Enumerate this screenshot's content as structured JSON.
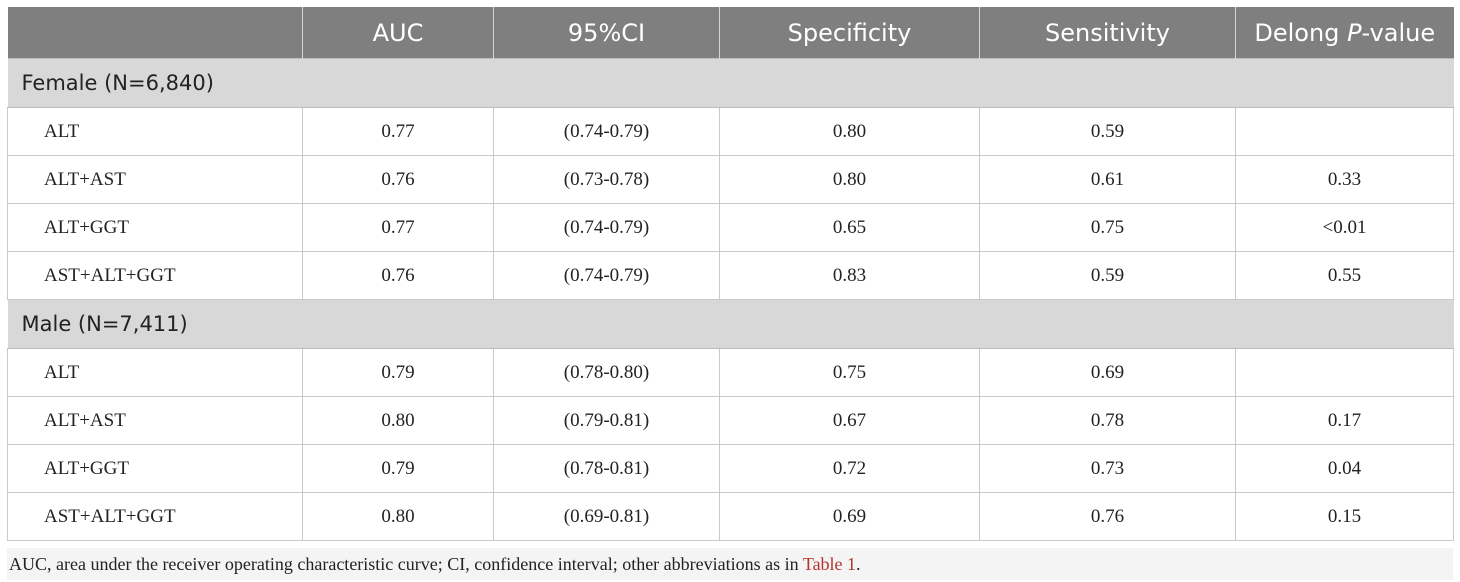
{
  "table": {
    "headers": [
      "",
      "AUC",
      "95%CI",
      "Specificity",
      "Sensitivity",
      "Delong"
    ],
    "pvalue_italic": "P",
    "pvalue_suffix": "-value",
    "groups": [
      {
        "label": "Female (N=6,840)",
        "rows": [
          [
            "ALT",
            "0.77",
            "(0.74-0.79)",
            "0.80",
            "0.59",
            ""
          ],
          [
            "ALT+AST",
            "0.76",
            "(0.73-0.78)",
            "0.80",
            "0.61",
            "0.33"
          ],
          [
            "ALT+GGT",
            "0.77",
            "(0.74-0.79)",
            "0.65",
            "0.75",
            "<0.01"
          ],
          [
            "AST+ALT+GGT",
            "0.76",
            "(0.74-0.79)",
            "0.83",
            "0.59",
            "0.55"
          ]
        ]
      },
      {
        "label": "Male (N=7,411)",
        "rows": [
          [
            "ALT",
            "0.79",
            "(0.78-0.80)",
            "0.75",
            "0.69",
            ""
          ],
          [
            "ALT+AST",
            "0.80",
            "(0.79-0.81)",
            "0.67",
            "0.78",
            "0.17"
          ],
          [
            "ALT+GGT",
            "0.79",
            "(0.78-0.81)",
            "0.72",
            "0.73",
            "0.04"
          ],
          [
            "AST+ALT+GGT",
            "0.80",
            "(0.69-0.81)",
            "0.69",
            "0.76",
            "0.15"
          ]
        ]
      }
    ]
  },
  "footnote": {
    "text": "AUC, area under the receiver operating characteristic curve; CI, confidence interval; other abbreviations as in ",
    "link": "Table 1",
    "end": "."
  },
  "colors": {
    "header_bg": "#7f7f7f",
    "group_bg": "#d8d8d8",
    "link": "#b5332e"
  }
}
